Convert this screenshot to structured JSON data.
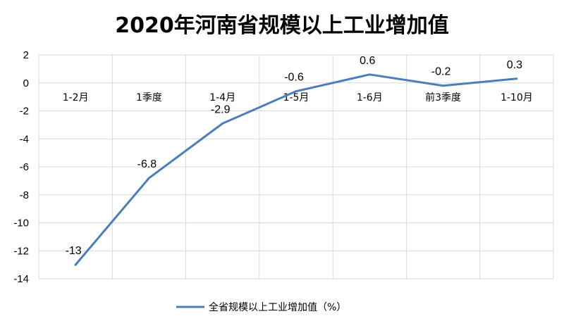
{
  "chart_data": {
    "type": "line",
    "title": "2020年河南省规模以上工业增加值",
    "categories": [
      "1-2月",
      "1季度",
      "1-4月",
      "1-5月",
      "1-6月",
      "前3季度",
      "1-10月"
    ],
    "series": [
      {
        "name": "全省规模以上工业增加值（%）",
        "values": [
          -13,
          -6.8,
          -2.9,
          -0.6,
          0.6,
          -0.2,
          0.3
        ],
        "labels": [
          "-13",
          "-6.8",
          "-2.9",
          "-0.6",
          "0.6",
          "-0.2",
          "0.3"
        ],
        "color": "#4a7ebb"
      }
    ],
    "ylim": [
      -14,
      2
    ],
    "ytick_step": 2,
    "xlabel": "",
    "ylabel": "",
    "grid": true,
    "legend": "bottom"
  }
}
